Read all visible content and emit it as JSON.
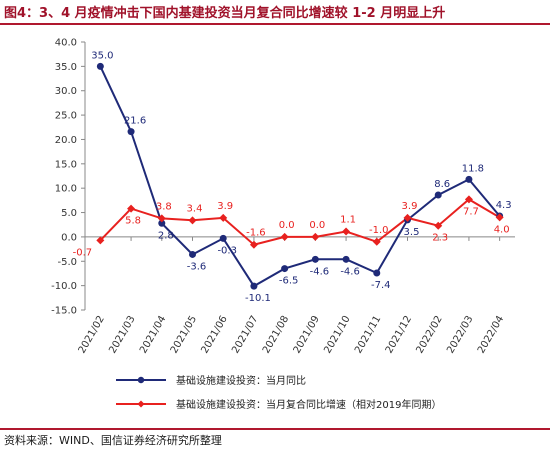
{
  "header": {
    "title": "图4：3、4 月疫情冲击下国内基建投资当月复合同比增速较 1-2 月明显上升"
  },
  "footer": {
    "source": "资料来源：WIND、国信证券经济研究所整理"
  },
  "colors": {
    "blue": "#1f2a78",
    "red": "#e8211f",
    "brand": "#a0122a"
  },
  "chart_data": {
    "type": "line",
    "x": [
      "2021/02",
      "2021/03",
      "2021/04",
      "2021/05",
      "2021/06",
      "2021/07",
      "2021/08",
      "2021/09",
      "2021/10",
      "2021/11",
      "2021/12",
      "2022/02",
      "2022/03",
      "2022/04"
    ],
    "ylim": [
      -15,
      40
    ],
    "yticks": [
      "40.0",
      "35.0",
      "30.0",
      "25.0",
      "20.0",
      "15.0",
      "10.0",
      "5.0",
      "0.0",
      "-5.0",
      "-10.0",
      "-15.0"
    ],
    "grid": false,
    "legend_position": "bottom",
    "series": [
      {
        "name": "基础设施建设投资：当月同比",
        "values": [
          35.0,
          21.6,
          2.8,
          -3.6,
          -0.3,
          -10.1,
          -6.5,
          -4.6,
          -4.6,
          -7.4,
          3.5,
          8.6,
          11.8,
          4.3
        ],
        "labels": [
          "35.0",
          "21.6",
          "2.8",
          "-3.6",
          "-0.3",
          "-10.1",
          "-6.5",
          "-4.6",
          "-4.6",
          "-7.4",
          "3.5",
          "8.6",
          "11.8",
          "4.3"
        ]
      },
      {
        "name": "基础设施建设投资：当月复合同比增速（相对2019年同期）",
        "values": [
          -0.7,
          5.8,
          3.8,
          3.4,
          3.9,
          -1.6,
          0.0,
          0.0,
          1.1,
          -1.0,
          3.9,
          2.3,
          7.7,
          4.0
        ],
        "labels": [
          "-0.7",
          "5.8",
          "3.8",
          "3.4",
          "3.9",
          "-1.6",
          "0.0",
          "0.0",
          "1.1",
          "-1.0",
          "3.9",
          "2.3",
          "7.7",
          "4.0"
        ]
      }
    ]
  }
}
